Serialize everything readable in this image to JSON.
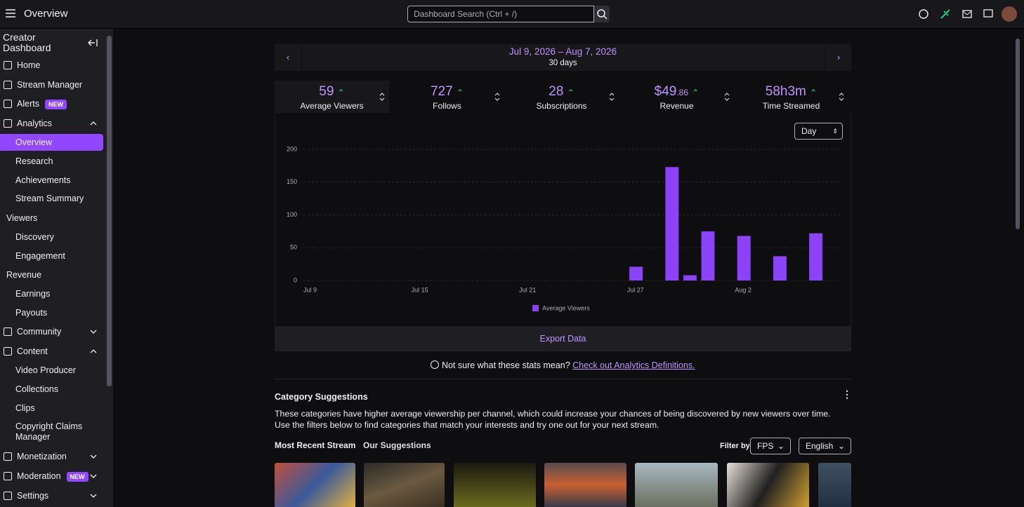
{
  "topbar": {
    "title": "Overview",
    "search_placeholder": "Dashboard Search (Ctrl + /)"
  },
  "sidebar": {
    "title": "Creator Dashboard",
    "items": [
      {
        "label": "Home"
      },
      {
        "label": "Stream Manager"
      },
      {
        "label": "Alerts",
        "badge": "NEW"
      },
      {
        "label": "Analytics"
      },
      {
        "label": "Overview"
      },
      {
        "label": "Research"
      },
      {
        "label": "Achievements"
      },
      {
        "label": "Stream Summary"
      },
      {
        "label": "Viewers"
      },
      {
        "label": "Discovery"
      },
      {
        "label": "Engagement"
      },
      {
        "label": "Revenue"
      },
      {
        "label": "Earnings"
      },
      {
        "label": "Payouts"
      },
      {
        "label": "Community"
      },
      {
        "label": "Content"
      },
      {
        "label": "Video Producer"
      },
      {
        "label": "Collections"
      },
      {
        "label": "Clips"
      },
      {
        "label": "Copyright Claims Manager"
      },
      {
        "label": "Monetization"
      },
      {
        "label": "Moderation",
        "badge": "NEW"
      },
      {
        "label": "Settings"
      }
    ]
  },
  "date_range": {
    "range": "Jul 9, 2026 – Aug 7, 2026",
    "length": "30 days"
  },
  "stats": [
    {
      "value": 59,
      "label": "Average Viewers"
    },
    {
      "value": 727,
      "label": "Follows"
    },
    {
      "value": 28,
      "label": "Subscriptions"
    },
    {
      "value": "$49",
      "cents": ".86",
      "label": "Revenue"
    },
    {
      "value": "58h3m",
      "label": "Time Streamed"
    }
  ],
  "chart_controls": {
    "interval": "Day"
  },
  "chart_data": {
    "type": "bar",
    "categories": [
      "Jul 9",
      null,
      null,
      null,
      null,
      null,
      "Jul 15",
      null,
      null,
      null,
      null,
      null,
      "Jul 21",
      null,
      null,
      null,
      null,
      null,
      "Jul 27",
      null,
      null,
      null,
      null,
      null,
      "Aug 2",
      null,
      null,
      null,
      null,
      null
    ],
    "series": [
      {
        "name": "Average Viewers",
        "color": "#8c42f7",
        "values": [
          0,
          0,
          0,
          0,
          0,
          0,
          0,
          0,
          0,
          0,
          0,
          0,
          0,
          0,
          0,
          0,
          0,
          0,
          21,
          0,
          173,
          8,
          75,
          0,
          68,
          0,
          37,
          0,
          72,
          0
        ]
      }
    ],
    "ylim": [
      0,
      200
    ],
    "yticks": [
      0,
      50,
      100,
      150,
      200
    ],
    "grid": true
  },
  "export": {
    "label": "Export Data"
  },
  "help": {
    "text": "Not sure what these stats mean?",
    "link": "Check out Analytics Definitions."
  },
  "suggestions": {
    "title": "Category Suggestions",
    "description": "These categories have higher average viewership per channel, which could increase your chances of being discovered by new viewers over time. Use the filters below to find categories that match your interests and try one out for your next stream.",
    "tabs": [
      "Most Recent Stream",
      "Our Suggestions"
    ],
    "filter_label": "Filter by",
    "filters": [
      "FPS",
      "English"
    ]
  }
}
